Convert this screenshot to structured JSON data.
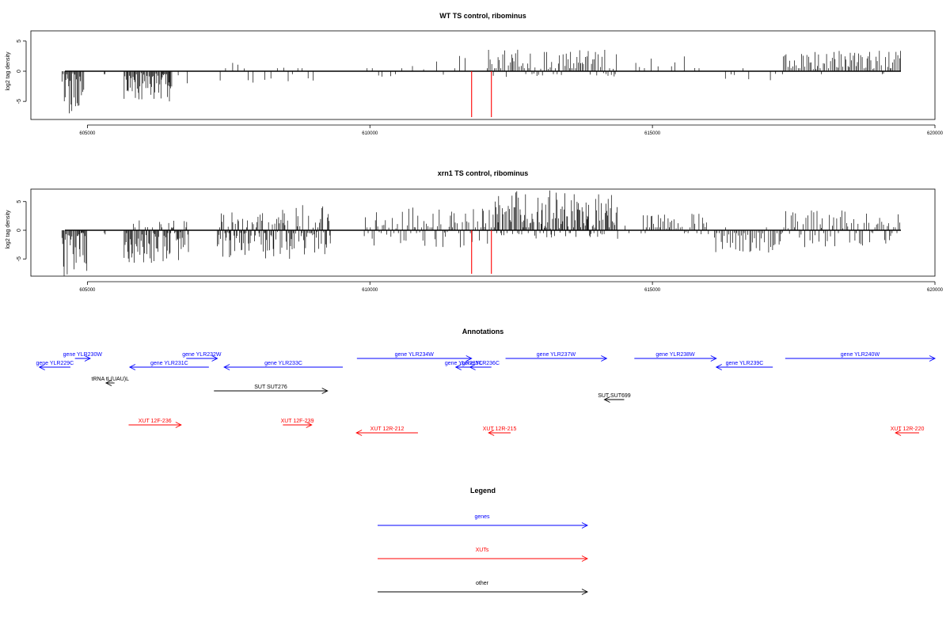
{
  "panels": [
    {
      "title": "WT TS control, ribominus",
      "ylabel": "log2 tag density",
      "xlim": [
        604000,
        620000
      ],
      "ylim": [
        -8,
        7
      ],
      "yticks": [
        -5,
        0,
        5
      ],
      "xticks": [
        605000,
        610000,
        615000,
        620000
      ],
      "markers_color": "#ff0000",
      "markers": [
        611800,
        612150
      ],
      "density": [
        {
          "from": 604550,
          "to": 604950,
          "mode": "dense",
          "lo": -7,
          "hi": 0,
          "seed": 1
        },
        {
          "from": 605300,
          "to": 605320,
          "mode": "dense",
          "lo": -1.5,
          "hi": 0,
          "seed": 2
        },
        {
          "from": 605650,
          "to": 606500,
          "mode": "dense",
          "lo": -5,
          "hi": 0,
          "seed": 3
        },
        {
          "from": 606500,
          "to": 606800,
          "mode": "sparse",
          "lo": -3,
          "hi": 0,
          "seed": 4
        },
        {
          "from": 607350,
          "to": 609200,
          "mode": "sparse",
          "lo": -2,
          "hi": 2,
          "seed": 5
        },
        {
          "from": 609950,
          "to": 611400,
          "mode": "sparse",
          "lo": -1,
          "hi": 2,
          "seed": 6
        },
        {
          "from": 611500,
          "to": 612100,
          "mode": "sparse",
          "lo": -1,
          "hi": 3,
          "seed": 7
        },
        {
          "from": 612100,
          "to": 614400,
          "mode": "mid",
          "lo": -1,
          "hi": 4,
          "seed": 8
        },
        {
          "from": 614600,
          "to": 615900,
          "mode": "sparse",
          "lo": -0.5,
          "hi": 2.5,
          "seed": 9
        },
        {
          "from": 616200,
          "to": 617300,
          "mode": "sparse",
          "lo": -2,
          "hi": 0.5,
          "seed": 10
        },
        {
          "from": 617300,
          "to": 619400,
          "mode": "mid",
          "lo": -0.5,
          "hi": 3.5,
          "seed": 11
        }
      ]
    },
    {
      "title": "xrn1 TS control, ribominus",
      "ylabel": "log2 tag density",
      "xlim": [
        604000,
        620000
      ],
      "ylim": [
        -8,
        7
      ],
      "yticks": [
        -5,
        0,
        5
      ],
      "xticks": [
        605000,
        610000,
        615000,
        620000
      ],
      "markers_color": "#ff0000",
      "markers": [
        611800,
        612150
      ],
      "density": [
        {
          "from": 604550,
          "to": 605000,
          "mode": "dense",
          "lo": -8,
          "hi": 0,
          "seed": 21
        },
        {
          "from": 605300,
          "to": 605320,
          "mode": "dense",
          "lo": -2,
          "hi": 0,
          "seed": 22
        },
        {
          "from": 605650,
          "to": 606800,
          "mode": "dense",
          "lo": -6,
          "hi": 2,
          "seed": 23
        },
        {
          "from": 607300,
          "to": 609300,
          "mode": "dense",
          "lo": -5,
          "hi": 4.5,
          "seed": 24
        },
        {
          "from": 609900,
          "to": 611400,
          "mode": "mid",
          "lo": -3,
          "hi": 4,
          "seed": 25
        },
        {
          "from": 611400,
          "to": 612200,
          "mode": "mid",
          "lo": -3,
          "hi": 4,
          "seed": 26
        },
        {
          "from": 612200,
          "to": 614400,
          "mode": "dense",
          "lo": -1.5,
          "hi": 7,
          "seed": 27
        },
        {
          "from": 614400,
          "to": 614600,
          "mode": "sparse",
          "lo": -1.5,
          "hi": 1,
          "seed": 28
        },
        {
          "from": 614800,
          "to": 616000,
          "mode": "mid",
          "lo": -1,
          "hi": 3,
          "seed": 29
        },
        {
          "from": 616100,
          "to": 617300,
          "mode": "mid",
          "lo": -4,
          "hi": 0.5,
          "seed": 30
        },
        {
          "from": 617300,
          "to": 619400,
          "mode": "mid",
          "lo": -3,
          "hi": 4,
          "seed": 31
        }
      ]
    }
  ],
  "annotations": {
    "title": "Annotations",
    "items": [
      {
        "label": "gene YLR230W",
        "from": 604780,
        "to": 605050,
        "strand": "+",
        "row": 0,
        "color": "#0000ff"
      },
      {
        "label": "gene YLR229C",
        "from": 604150,
        "to": 604700,
        "strand": "-",
        "row": 1,
        "color": "#0000ff"
      },
      {
        "label": "gene YLR232W",
        "from": 606750,
        "to": 607300,
        "strand": "+",
        "row": 0,
        "color": "#0000ff"
      },
      {
        "label": "gene YLR231C",
        "from": 605750,
        "to": 607150,
        "strand": "-",
        "row": 1,
        "color": "#0000ff"
      },
      {
        "label": "gene YLR233C",
        "from": 607420,
        "to": 609520,
        "strand": "-",
        "row": 1,
        "color": "#0000ff"
      },
      {
        "label": "tRNA tL(UAU)L",
        "from": 605330,
        "to": 605480,
        "strand": "-",
        "row": 2,
        "color": "#000000"
      },
      {
        "label": "gene YLR234W",
        "from": 609770,
        "to": 611800,
        "strand": "+",
        "row": 0,
        "color": "#0000ff"
      },
      {
        "label": "gene YLR235C",
        "from": 611520,
        "to": 611800,
        "strand": "-",
        "row": 1,
        "color": "#0000ff"
      },
      {
        "label": "gene YLR236C",
        "from": 611770,
        "to": 612150,
        "strand": "-",
        "row": 1,
        "color": "#0000ff"
      },
      {
        "label": "gene YLR237W",
        "from": 612400,
        "to": 614190,
        "strand": "+",
        "row": 0,
        "color": "#0000ff"
      },
      {
        "label": "gene YLR238W",
        "from": 614680,
        "to": 616130,
        "strand": "+",
        "row": 0,
        "color": "#0000ff"
      },
      {
        "label": "gene YLR239C",
        "from": 616130,
        "to": 617130,
        "strand": "-",
        "row": 1,
        "color": "#0000ff"
      },
      {
        "label": "gene YLR240W",
        "from": 617350,
        "to": 620000,
        "strand": "+",
        "row": 0,
        "color": "#0000ff"
      },
      {
        "label": "SUT SUT276",
        "from": 607240,
        "to": 609250,
        "strand": "+",
        "row": 3,
        "color": "#000000"
      },
      {
        "label": "SUT SUT699",
        "from": 614150,
        "to": 614500,
        "strand": "-",
        "row": 4,
        "color": "#000000"
      },
      {
        "label": "XUT 12F-236",
        "from": 605730,
        "to": 606660,
        "strand": "+",
        "row": 5,
        "color": "#ff0000"
      },
      {
        "label": "XUT 12F-239",
        "from": 608460,
        "to": 608970,
        "strand": "+",
        "row": 5,
        "color": "#ff0000"
      },
      {
        "label": "XUT 12R-212",
        "from": 609760,
        "to": 610850,
        "strand": "-",
        "row": 6,
        "color": "#ff0000"
      },
      {
        "label": "XUT 12R-215",
        "from": 612100,
        "to": 612490,
        "strand": "-",
        "row": 6,
        "color": "#ff0000"
      },
      {
        "label": "XUT 12R-220",
        "from": 619300,
        "to": 619720,
        "strand": "-",
        "row": 6,
        "color": "#ff0000"
      }
    ]
  },
  "legend": {
    "title": "Legend",
    "entries": [
      {
        "label": "genes",
        "color": "#0000ff"
      },
      {
        "label": "XUTs",
        "color": "#ff0000"
      },
      {
        "label": "other",
        "color": "#000000"
      }
    ]
  }
}
